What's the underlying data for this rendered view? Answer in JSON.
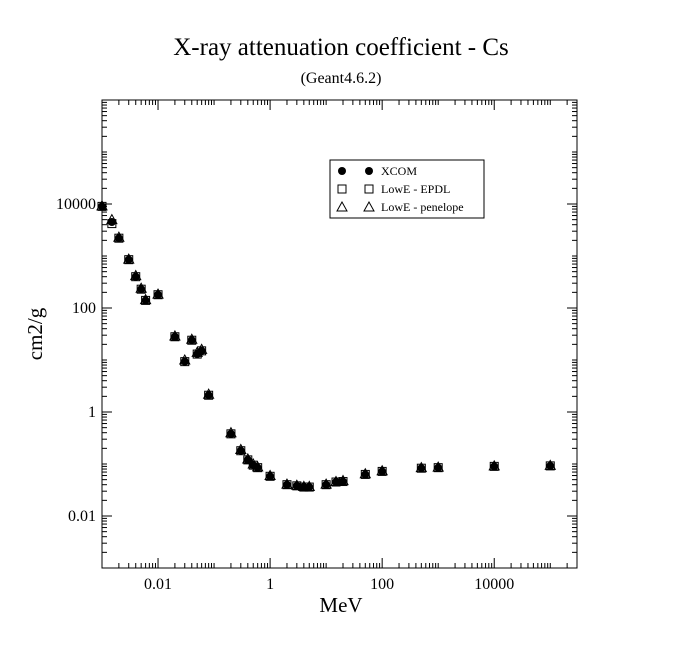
{
  "chart_data": {
    "type": "scatter",
    "title": "X-ray attenuation coefficient - Cs",
    "subtitle": "(Geant4.6.2)",
    "xlabel": "MeV",
    "ylabel": "cm2/g",
    "xscale": "log",
    "yscale": "log",
    "xlim": [
      0.001,
      300000
    ],
    "ylim": [
      0.001,
      1000000
    ],
    "xticks": [
      {
        "value": 0.01,
        "label": "0.01"
      },
      {
        "value": 1,
        "label": "1"
      },
      {
        "value": 100,
        "label": "100"
      },
      {
        "value": 10000,
        "label": "10000"
      }
    ],
    "yticks": [
      {
        "value": 0.01,
        "label": "0.01"
      },
      {
        "value": 1,
        "label": "1"
      },
      {
        "value": 100,
        "label": "100"
      },
      {
        "value": 10000,
        "label": "10000"
      }
    ],
    "grid": false,
    "legend_position": "top-right",
    "x": [
      0.001,
      0.0015,
      0.002,
      0.003,
      0.004,
      0.005,
      0.006,
      0.01,
      0.02,
      0.03,
      0.04,
      0.05,
      0.06,
      0.08,
      0.2,
      0.3,
      0.4,
      0.5,
      0.6,
      1,
      2,
      3,
      4,
      5,
      10,
      15,
      20,
      50,
      100,
      500,
      1000,
      10000,
      100000
    ],
    "series": [
      {
        "name": "XCOM",
        "marker": "circle-filled",
        "values": [
          9000,
          4500,
          2200,
          850,
          400,
          230,
          140,
          180,
          28,
          9.3,
          24,
          13,
          15,
          2.1,
          0.38,
          0.18,
          0.12,
          0.095,
          0.085,
          0.058,
          0.04,
          0.038,
          0.036,
          0.036,
          0.04,
          0.045,
          0.046,
          0.063,
          0.072,
          0.083,
          0.085,
          0.09,
          0.092
        ]
      },
      {
        "name": "LowE - EPDL",
        "marker": "square-open",
        "values": [
          9000,
          4200,
          2200,
          850,
          400,
          230,
          140,
          180,
          28,
          9.3,
          24,
          13,
          15,
          2.1,
          0.38,
          0.18,
          0.12,
          0.095,
          0.085,
          0.058,
          0.04,
          0.038,
          0.036,
          0.036,
          0.04,
          0.045,
          0.046,
          0.063,
          0.072,
          0.083,
          0.085,
          0.09,
          0.092
        ]
      },
      {
        "name": "LowE - penelope",
        "marker": "triangle-open",
        "values": [
          9200,
          5000,
          2300,
          870,
          420,
          240,
          145,
          185,
          29,
          10,
          25,
          14,
          16,
          2.2,
          0.4,
          0.19,
          0.125,
          0.1,
          0.088,
          0.06,
          0.041,
          0.039,
          0.037,
          0.037,
          0.041,
          0.046,
          0.048,
          0.065,
          0.074,
          0.085,
          0.087,
          0.092,
          0.094
        ]
      }
    ]
  }
}
